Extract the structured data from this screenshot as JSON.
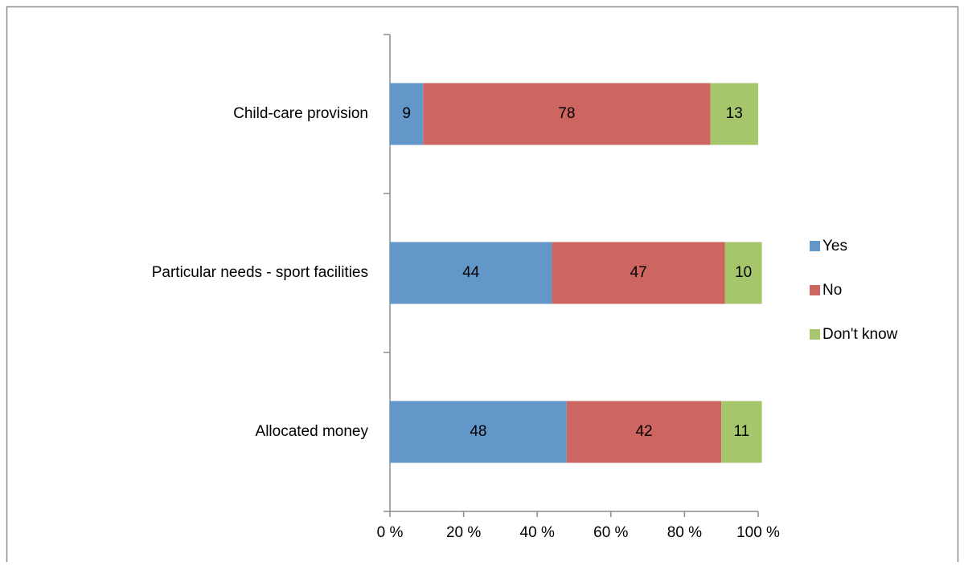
{
  "chart_data": {
    "type": "stacked-bar-horizontal",
    "categories": [
      "Child-care provision",
      "Particular needs - sport facilities",
      "Allocated money"
    ],
    "series": [
      {
        "name": "Yes",
        "color": "#6497c9",
        "values": [
          9,
          44,
          48
        ]
      },
      {
        "name": "No",
        "color": "#cd6660",
        "values": [
          78,
          47,
          42
        ]
      },
      {
        "name": "Don't know",
        "color": "#a5c66a",
        "values": [
          13,
          10,
          11
        ]
      }
    ],
    "xlim": [
      0,
      100
    ],
    "xticks": [
      {
        "value": 0,
        "label": "0 %"
      },
      {
        "value": 20,
        "label": "20 %"
      },
      {
        "value": 40,
        "label": "40 %"
      },
      {
        "value": 60,
        "label": "60 %"
      },
      {
        "value": 80,
        "label": "80 %"
      },
      {
        "value": 100,
        "label": "100 %"
      }
    ],
    "legend": "right"
  }
}
